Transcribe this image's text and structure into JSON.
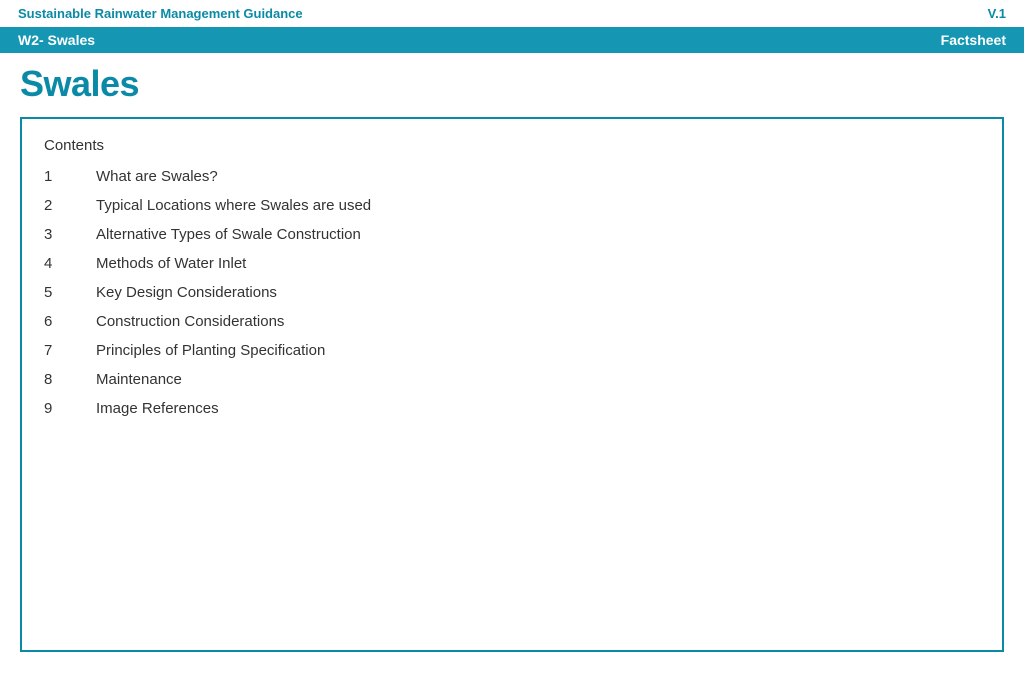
{
  "colors": {
    "primary": "#0a8aa6",
    "banner_bg": "#1597b3",
    "border": "#0a8aa6",
    "text": "#333333",
    "white": "#ffffff"
  },
  "header": {
    "left": "Sustainable Rainwater Management Guidance",
    "right": "V.1"
  },
  "banner": {
    "left": "W2- Swales",
    "right": "Factsheet"
  },
  "title": "Swales",
  "contents": {
    "heading": "Contents",
    "items": [
      {
        "num": "1",
        "label": "What are Swales?"
      },
      {
        "num": "2",
        "label": "Typical Locations where Swales are used"
      },
      {
        "num": "3",
        "label": "Alternative Types of Swale Construction"
      },
      {
        "num": "4",
        "label": "Methods of Water Inlet"
      },
      {
        "num": "5",
        "label": "Key Design Considerations"
      },
      {
        "num": "6",
        "label": "Construction Considerations"
      },
      {
        "num": "7",
        "label": "Principles of Planting Specification"
      },
      {
        "num": "8",
        "label": "Maintenance"
      },
      {
        "num": "9",
        "label": "Image References"
      }
    ]
  }
}
